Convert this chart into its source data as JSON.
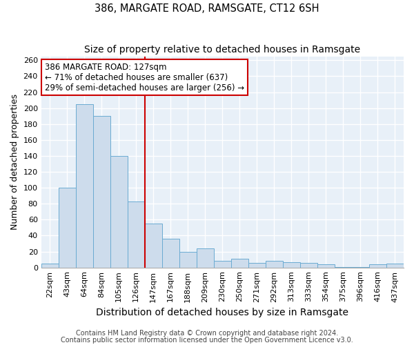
{
  "title1": "386, MARGATE ROAD, RAMSGATE, CT12 6SH",
  "title2": "Size of property relative to detached houses in Ramsgate",
  "xlabel": "Distribution of detached houses by size in Ramsgate",
  "ylabel": "Number of detached properties",
  "footnote1": "Contains HM Land Registry data © Crown copyright and database right 2024.",
  "footnote2": "Contains public sector information licensed under the Open Government Licence v3.0.",
  "bar_labels": [
    "22sqm",
    "43sqm",
    "64sqm",
    "84sqm",
    "105sqm",
    "126sqm",
    "147sqm",
    "167sqm",
    "188sqm",
    "209sqm",
    "230sqm",
    "250sqm",
    "271sqm",
    "292sqm",
    "313sqm",
    "333sqm",
    "354sqm",
    "375sqm",
    "396sqm",
    "416sqm",
    "437sqm"
  ],
  "bar_values": [
    5,
    100,
    205,
    190,
    140,
    83,
    55,
    36,
    20,
    24,
    8,
    11,
    6,
    8,
    7,
    6,
    4,
    1,
    1,
    4,
    5
  ],
  "bar_color": "#cddcec",
  "bar_edgecolor": "#6aabd2",
  "vline_x_idx": 5,
  "vline_color": "#cc0000",
  "annotation_line1": "386 MARGATE ROAD: 127sqm",
  "annotation_line2": "← 71% of detached houses are smaller (637)",
  "annotation_line3": "29% of semi-detached houses are larger (256) →",
  "ylim": [
    0,
    265
  ],
  "yticks": [
    0,
    20,
    40,
    60,
    80,
    100,
    120,
    140,
    160,
    180,
    200,
    220,
    240,
    260
  ],
  "background_color": "#e8f0f8",
  "grid_color": "#ffffff",
  "fig_bg": "#ffffff",
  "title1_fontsize": 10.5,
  "title2_fontsize": 10,
  "xlabel_fontsize": 10,
  "ylabel_fontsize": 9,
  "tick_fontsize": 8,
  "footnote_fontsize": 7,
  "ann_fontsize": 8.5
}
